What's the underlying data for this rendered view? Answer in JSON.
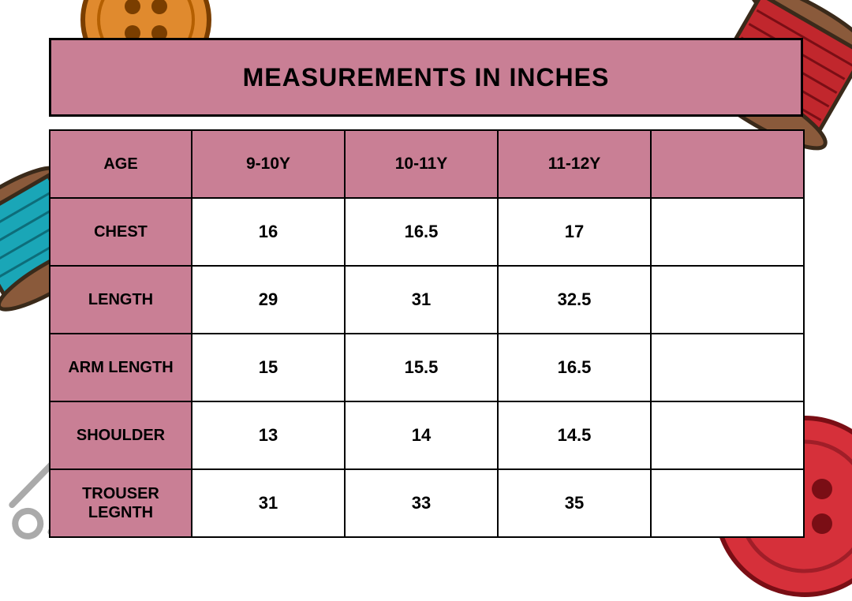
{
  "title": "MEASUREMENTS IN INCHES",
  "colors": {
    "header_bg": "#c97f95",
    "border": "#000000",
    "cell_bg": "#ffffff",
    "text": "#000000"
  },
  "table": {
    "columns": [
      "AGE",
      "9-10Y",
      "10-11Y",
      "11-12Y",
      ""
    ],
    "rows": [
      {
        "label": "CHEST",
        "values": [
          "16",
          "16.5",
          "17",
          ""
        ]
      },
      {
        "label": "LENGTH",
        "values": [
          "29",
          "31",
          "32.5",
          ""
        ]
      },
      {
        "label": "ARM LENGTH",
        "values": [
          "15",
          "15.5",
          "16.5",
          ""
        ]
      },
      {
        "label": "SHOULDER",
        "values": [
          "13",
          "14",
          "14.5",
          ""
        ]
      },
      {
        "label": "TROUSER LEGNTH",
        "values": [
          "31",
          "33",
          "35",
          ""
        ]
      }
    ]
  },
  "decor": {
    "button_orange": "#e08a2e",
    "button_red": "#d6303a",
    "spool_teal": "#1aa6b7",
    "spool_red": "#c1272d",
    "spool_wood": "#8a5a3b",
    "pin_silver": "#c0c0c0"
  }
}
